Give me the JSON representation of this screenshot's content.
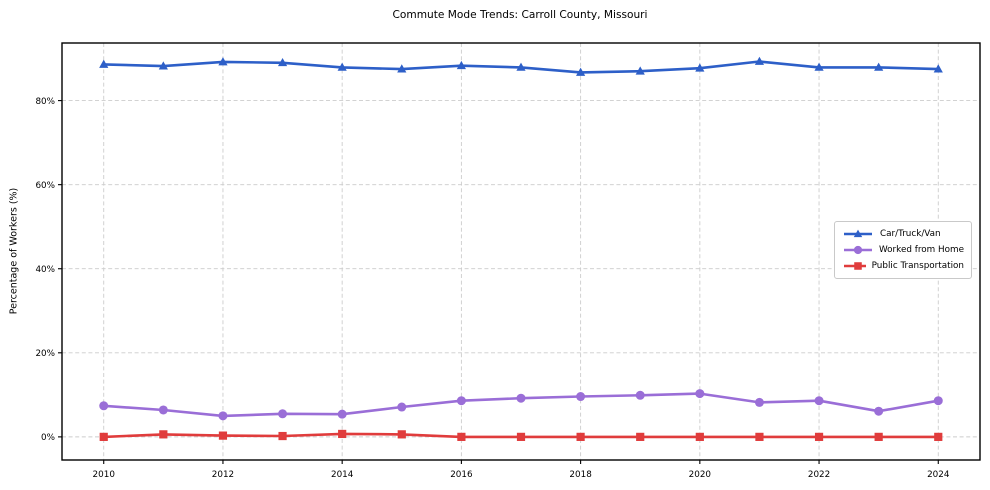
{
  "chart_data": {
    "type": "line",
    "title": "Commute Mode Trends: Carroll County, Missouri",
    "xlabel": "",
    "ylabel": "Percentage of Workers (%)",
    "x": [
      2010,
      2011,
      2012,
      2013,
      2014,
      2015,
      2016,
      2017,
      2018,
      2019,
      2020,
      2021,
      2022,
      2023,
      2024
    ],
    "series": [
      {
        "name": "Car/Truck/Van",
        "color": "#2d5fc8",
        "marker": "triangle",
        "values": [
          88.6,
          88.2,
          89.2,
          89.0,
          87.9,
          87.5,
          88.3,
          87.9,
          86.7,
          87.0,
          87.7,
          89.3,
          87.9,
          87.9,
          87.5
        ]
      },
      {
        "name": "Worked from Home",
        "color": "#9a6ed7",
        "marker": "circle",
        "values": [
          7.4,
          6.4,
          5.0,
          5.5,
          5.4,
          7.1,
          8.6,
          9.2,
          9.6,
          9.9,
          10.3,
          8.2,
          8.6,
          6.1,
          8.6
        ]
      },
      {
        "name": "Public Transportation",
        "color": "#e03c3c",
        "marker": "square",
        "values": [
          0.0,
          0.6,
          0.3,
          0.2,
          0.7,
          0.6,
          0.0,
          0.0,
          0.0,
          0.0,
          0.0,
          0.0,
          0.0,
          0.0,
          0.0
        ]
      }
    ],
    "xticks": {
      "values": [
        2010,
        2012,
        2014,
        2016,
        2018,
        2020,
        2022,
        2024
      ],
      "labels": [
        "2010",
        "2012",
        "2014",
        "2016",
        "2018",
        "2020",
        "2022",
        "2024"
      ]
    },
    "yticks": {
      "values": [
        0,
        20,
        40,
        60,
        80
      ],
      "labels": [
        "0%",
        "20%",
        "40%",
        "60%",
        "80%"
      ]
    },
    "xlim": [
      2009.3,
      2024.7
    ],
    "ylim": [
      -5.5,
      93.7
    ],
    "grid": true,
    "legend": {
      "location": "center right"
    }
  }
}
